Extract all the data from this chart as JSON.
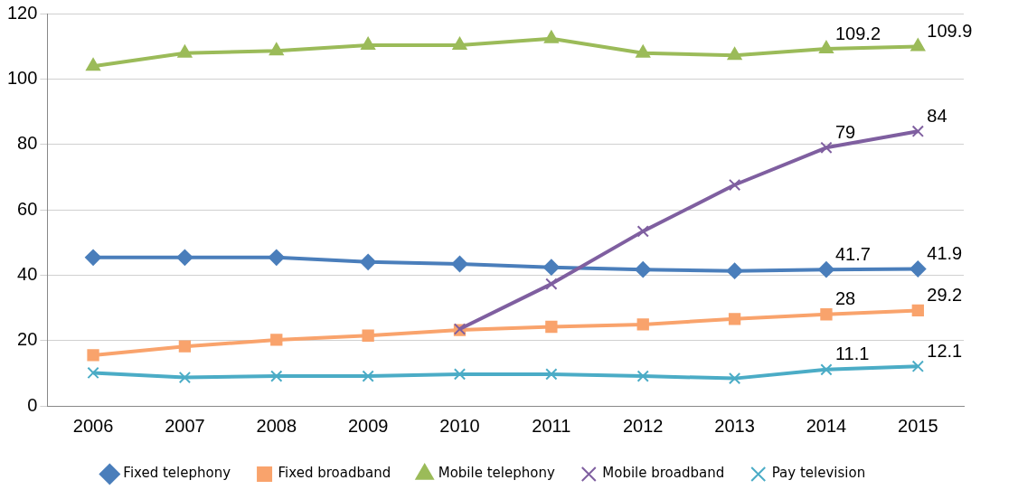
{
  "chart_data": {
    "type": "line",
    "categories": [
      "2006",
      "2007",
      "2008",
      "2009",
      "2010",
      "2011",
      "2012",
      "2013",
      "2014",
      "2015"
    ],
    "ylim": [
      0,
      120
    ],
    "yticks": [
      0,
      20,
      40,
      60,
      80,
      100,
      120
    ],
    "grid": "y",
    "legend": "bottom",
    "series": [
      {
        "name": "Fixed telephony",
        "color": "#4a7ebb",
        "marker": "diamond",
        "values": [
          45.4,
          45.4,
          45.4,
          44.0,
          43.4,
          42.4,
          41.7,
          41.3,
          41.7,
          41.9
        ],
        "value_labels": [
          null,
          null,
          null,
          null,
          null,
          null,
          null,
          null,
          "41.7",
          "41.9"
        ]
      },
      {
        "name": "Fixed broadband",
        "color": "#f9a36c",
        "marker": "square",
        "values": [
          15.5,
          18.2,
          20.2,
          21.5,
          23.2,
          24.2,
          24.9,
          26.6,
          28,
          29.2
        ],
        "value_labels": [
          null,
          null,
          null,
          null,
          null,
          null,
          null,
          null,
          "28",
          "29.2"
        ]
      },
      {
        "name": "Mobile telephony",
        "color": "#9bbb59",
        "marker": "triangle",
        "values": [
          103.9,
          107.9,
          108.6,
          110.3,
          110.3,
          112.3,
          107.9,
          107.2,
          109.2,
          109.9
        ],
        "value_labels": [
          null,
          null,
          null,
          null,
          null,
          null,
          null,
          null,
          "109.2",
          "109.9"
        ]
      },
      {
        "name": "Mobile broadband",
        "color": "#7f5fa0",
        "marker": "cross",
        "values": [
          null,
          null,
          null,
          null,
          23.5,
          37.3,
          53.4,
          67.6,
          79,
          84
        ],
        "value_labels": [
          null,
          null,
          null,
          null,
          null,
          null,
          null,
          null,
          "79",
          "84"
        ]
      },
      {
        "name": "Pay television",
        "color": "#4bacc6",
        "marker": "cross",
        "values": [
          10.1,
          8.7,
          9.1,
          9.1,
          9.7,
          9.7,
          9.1,
          8.4,
          11.1,
          12.1
        ],
        "value_labels": [
          null,
          null,
          null,
          null,
          null,
          null,
          null,
          null,
          "11.1",
          "12.1"
        ]
      }
    ]
  }
}
